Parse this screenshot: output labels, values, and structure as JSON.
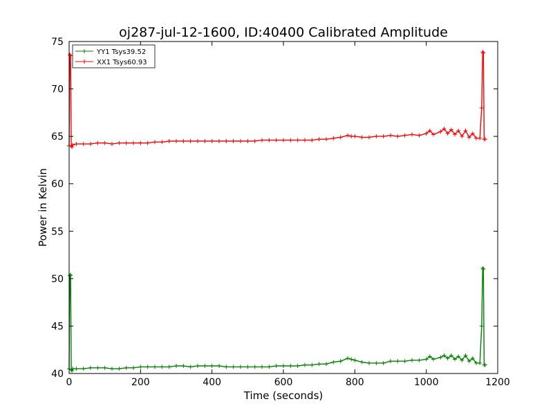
{
  "chart_data": {
    "type": "line",
    "title": "oj287-jul-12-1600, ID:40400 Calibrated Amplitude",
    "xlabel": "Time (seconds)",
    "ylabel": "Power in Kelvin",
    "xlim": [
      0,
      1200
    ],
    "ylim": [
      40,
      75
    ],
    "xticks": [
      "0",
      "200",
      "400",
      "600",
      "800",
      "1000",
      "1200"
    ],
    "yticks": [
      "40",
      "45",
      "50",
      "55",
      "60",
      "65",
      "70",
      "75"
    ],
    "grid": false,
    "legend_position": "top-left",
    "series": [
      {
        "name": "YY1 Tsys39.52",
        "color": "#008000",
        "marker": "+",
        "x": [
          0,
          2,
          4,
          6,
          8,
          10,
          20,
          40,
          60,
          80,
          100,
          120,
          140,
          160,
          180,
          200,
          220,
          240,
          260,
          280,
          300,
          320,
          340,
          360,
          380,
          400,
          420,
          440,
          460,
          480,
          500,
          520,
          540,
          560,
          580,
          600,
          620,
          640,
          660,
          680,
          700,
          720,
          740,
          760,
          780,
          790,
          800,
          820,
          840,
          860,
          880,
          900,
          920,
          940,
          960,
          980,
          1000,
          1010,
          1020,
          1040,
          1050,
          1060,
          1070,
          1080,
          1090,
          1100,
          1110,
          1120,
          1130,
          1140,
          1150,
          1155,
          1158,
          1160,
          1162,
          1165
        ],
        "y": [
          40.5,
          50.3,
          50.4,
          40.4,
          40.3,
          40.5,
          40.5,
          40.5,
          40.6,
          40.6,
          40.6,
          40.5,
          40.5,
          40.6,
          40.6,
          40.7,
          40.7,
          40.7,
          40.7,
          40.7,
          40.8,
          40.8,
          40.7,
          40.8,
          40.8,
          40.8,
          40.8,
          40.7,
          40.7,
          40.7,
          40.7,
          40.7,
          40.7,
          40.7,
          40.8,
          40.8,
          40.8,
          40.8,
          40.9,
          40.9,
          41.0,
          41.0,
          41.2,
          41.3,
          41.6,
          41.5,
          41.4,
          41.2,
          41.1,
          41.1,
          41.1,
          41.3,
          41.3,
          41.3,
          41.4,
          41.4,
          41.5,
          41.8,
          41.5,
          41.7,
          41.9,
          41.6,
          41.9,
          41.5,
          41.8,
          41.4,
          41.9,
          41.3,
          41.6,
          41.1,
          41.1,
          45.0,
          51.1,
          51.0,
          40.9,
          40.9
        ]
      },
      {
        "name": "XX1 Tsys60.93",
        "color": "#ff0000",
        "marker": "+",
        "x": [
          0,
          2,
          4,
          6,
          8,
          10,
          20,
          40,
          60,
          80,
          100,
          120,
          140,
          160,
          180,
          200,
          220,
          240,
          260,
          280,
          300,
          320,
          340,
          360,
          380,
          400,
          420,
          440,
          460,
          480,
          500,
          520,
          540,
          560,
          580,
          600,
          620,
          640,
          660,
          680,
          700,
          720,
          740,
          760,
          780,
          790,
          800,
          820,
          840,
          860,
          880,
          900,
          920,
          940,
          960,
          980,
          1000,
          1010,
          1020,
          1040,
          1050,
          1060,
          1070,
          1080,
          1090,
          1100,
          1110,
          1120,
          1130,
          1140,
          1150,
          1155,
          1158,
          1160,
          1162,
          1165
        ],
        "y": [
          64.0,
          73.6,
          73.5,
          64.0,
          63.9,
          64.1,
          64.2,
          64.2,
          64.2,
          64.3,
          64.3,
          64.2,
          64.3,
          64.3,
          64.3,
          64.3,
          64.3,
          64.4,
          64.4,
          64.5,
          64.5,
          64.5,
          64.5,
          64.5,
          64.5,
          64.5,
          64.5,
          64.5,
          64.5,
          64.5,
          64.5,
          64.5,
          64.6,
          64.6,
          64.6,
          64.6,
          64.6,
          64.6,
          64.6,
          64.6,
          64.7,
          64.7,
          64.8,
          64.9,
          65.1,
          65.0,
          65.0,
          64.9,
          64.9,
          65.0,
          65.0,
          65.1,
          65.0,
          65.1,
          65.2,
          65.1,
          65.3,
          65.6,
          65.2,
          65.5,
          65.8,
          65.3,
          65.7,
          65.2,
          65.6,
          65.0,
          65.6,
          64.9,
          65.3,
          64.8,
          64.8,
          68.0,
          73.9,
          73.8,
          64.7,
          64.7
        ]
      }
    ]
  }
}
